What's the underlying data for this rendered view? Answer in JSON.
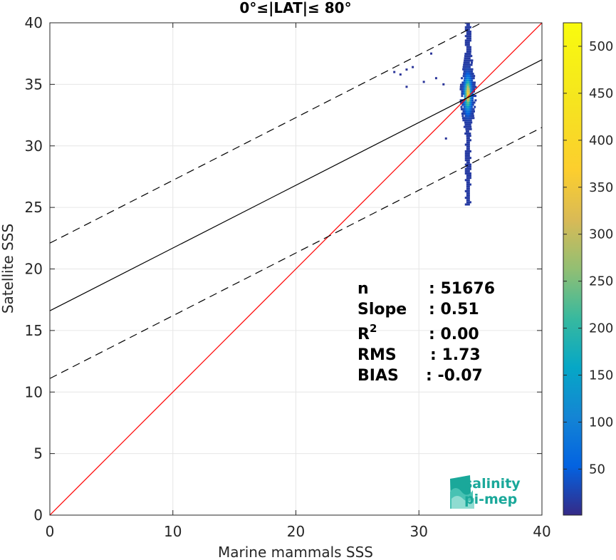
{
  "chart_data": {
    "type": "scatter",
    "title": "0°≤|LAT|≤ 80°",
    "xlabel": "Marine mammals SSS",
    "ylabel": "Satellite SSS",
    "xlim": [
      0,
      40
    ],
    "ylim": [
      0,
      40
    ],
    "xticks": [
      "0",
      "10",
      "20",
      "30",
      "40"
    ],
    "yticks": [
      "0",
      "5",
      "10",
      "15",
      "20",
      "25",
      "30",
      "35",
      "40"
    ],
    "grid": true,
    "density": {
      "x_range": [
        32.8,
        35.6
      ],
      "y_range": [
        25.2,
        40
      ],
      "center": [
        34.0,
        34.2
      ],
      "peak_count": 520,
      "outliers": [
        [
          28.0,
          36.0
        ],
        [
          28.5,
          35.8
        ],
        [
          29.0,
          36.2
        ],
        [
          29.0,
          34.8
        ],
        [
          29.5,
          36.4
        ],
        [
          30.4,
          35.2
        ],
        [
          31.0,
          37.5
        ],
        [
          32.0,
          35.0
        ],
        [
          32.2,
          30.6
        ],
        [
          31.4,
          35.5
        ]
      ]
    },
    "lines": [
      {
        "name": "1:1",
        "slope": 1.0,
        "intercept": 0.0,
        "color": "#ff0000",
        "style": "solid"
      },
      {
        "name": "fit",
        "slope": 0.51,
        "intercept": 16.6,
        "color": "#000000",
        "style": "solid"
      },
      {
        "name": "fit+",
        "slope": 0.51,
        "intercept": 22.1,
        "color": "#000000",
        "style": "dashed"
      },
      {
        "name": "fit-",
        "slope": 0.51,
        "intercept": 11.1,
        "color": "#000000",
        "style": "dashed"
      }
    ],
    "colorbar": {
      "colormap": "parula",
      "range": [
        1,
        525
      ],
      "ticks": [
        "50",
        "100",
        "150",
        "200",
        "250",
        "300",
        "350",
        "400",
        "450",
        "500"
      ]
    },
    "stats": {
      "n_label": "n",
      "n_value": ": 51676",
      "slope_label": "Slope",
      "slope_value": ": 0.51",
      "r2_label": "R",
      "r2_sup": "2",
      "r2_value": ": 0.00",
      "rms_label": "RMS",
      "rms_value": ": 1.73",
      "bias_label": "BIAS",
      "bias_value": ": -0.07"
    }
  },
  "logo": {
    "line1": "salinity",
    "line2": "pi-mep",
    "color": "#1aa89a"
  }
}
